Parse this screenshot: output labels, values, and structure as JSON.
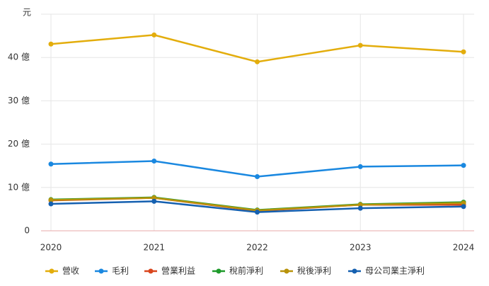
{
  "chart_data": {
    "type": "line",
    "y_label": "元",
    "categories": [
      "2020",
      "2021",
      "2022",
      "2023",
      "2024"
    ],
    "series": [
      {
        "name": "營收",
        "color": "#e3ad0c",
        "values": [
          43.1,
          45.2,
          39.0,
          42.8,
          41.3
        ]
      },
      {
        "name": "毛利",
        "color": "#1a88e0",
        "values": [
          15.4,
          16.1,
          12.5,
          14.8,
          15.1
        ]
      },
      {
        "name": "營業利益",
        "color": "#d9461e",
        "values": [
          7.0,
          7.6,
          4.6,
          6.0,
          6.0
        ]
      },
      {
        "name": "稅前淨利",
        "color": "#1f9b2c",
        "values": [
          7.2,
          7.7,
          4.8,
          6.1,
          6.6
        ]
      },
      {
        "name": "稅後淨利",
        "color": "#b8930a",
        "values": [
          7.1,
          7.6,
          4.7,
          6.0,
          6.4
        ]
      },
      {
        "name": "母公司業主淨利",
        "color": "#1560b0",
        "values": [
          6.2,
          6.8,
          4.3,
          5.2,
          5.6
        ]
      }
    ],
    "ylim": [
      0,
      50
    ],
    "yticks": [
      0,
      {
        "value": 10,
        "label": "10 億"
      },
      {
        "value": 20,
        "label": "20 億"
      },
      {
        "value": 30,
        "label": "30 億"
      },
      {
        "value": 40,
        "label": "40 億"
      }
    ],
    "grid": true
  }
}
